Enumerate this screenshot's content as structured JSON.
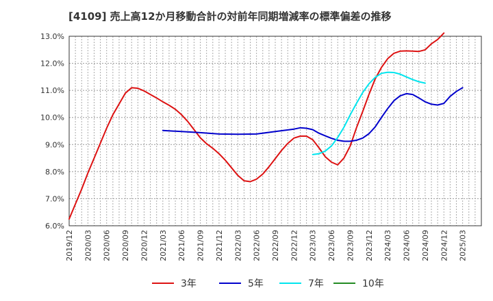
{
  "chart_data": {
    "type": "line",
    "title": "[4109]  売上高12か月移動合計の対前年同期増減率の標準偏差の推移",
    "xlabel": "",
    "ylabel": "",
    "ylim": [
      6.0,
      13.0
    ],
    "y_ticks": [
      "6.0%",
      "7.0%",
      "8.0%",
      "9.0%",
      "10.0%",
      "11.0%",
      "12.0%",
      "13.0%"
    ],
    "x_ticks": [
      "2019/12",
      "2020/03",
      "2020/06",
      "2020/09",
      "2020/12",
      "2021/03",
      "2021/06",
      "2021/09",
      "2021/12",
      "2022/03",
      "2022/06",
      "2022/09",
      "2022/12",
      "2023/03",
      "2023/06",
      "2023/09",
      "2023/12",
      "2024/03",
      "2024/06",
      "2024/09",
      "2024/12",
      "2025/03"
    ],
    "grid": true,
    "legend_position": "bottom",
    "series": [
      {
        "name": "3年",
        "color": "#dd1111",
        "points": [
          [
            "2019/12",
            6.25
          ],
          [
            "2020/01",
            6.8
          ],
          [
            "2020/02",
            7.35
          ],
          [
            "2020/03",
            7.95
          ],
          [
            "2020/04",
            8.5
          ],
          [
            "2020/05",
            9.05
          ],
          [
            "2020/06",
            9.6
          ],
          [
            "2020/07",
            10.1
          ],
          [
            "2020/08",
            10.5
          ],
          [
            "2020/09",
            10.9
          ],
          [
            "2020/10",
            11.1
          ],
          [
            "2020/11",
            11.08
          ],
          [
            "2020/12",
            10.98
          ],
          [
            "2021/01",
            10.85
          ],
          [
            "2021/02",
            10.72
          ],
          [
            "2021/03",
            10.58
          ],
          [
            "2021/04",
            10.45
          ],
          [
            "2021/05",
            10.3
          ],
          [
            "2021/06",
            10.1
          ],
          [
            "2021/07",
            9.85
          ],
          [
            "2021/08",
            9.55
          ],
          [
            "2021/09",
            9.25
          ],
          [
            "2021/10",
            9.03
          ],
          [
            "2021/11",
            8.86
          ],
          [
            "2021/12",
            8.66
          ],
          [
            "2022/01",
            8.42
          ],
          [
            "2022/02",
            8.14
          ],
          [
            "2022/03",
            7.86
          ],
          [
            "2022/04",
            7.66
          ],
          [
            "2022/05",
            7.63
          ],
          [
            "2022/06",
            7.72
          ],
          [
            "2022/07",
            7.91
          ],
          [
            "2022/08",
            8.18
          ],
          [
            "2022/09",
            8.48
          ],
          [
            "2022/10",
            8.78
          ],
          [
            "2022/11",
            9.04
          ],
          [
            "2022/12",
            9.24
          ],
          [
            "2023/01",
            9.31
          ],
          [
            "2023/02",
            9.31
          ],
          [
            "2023/03",
            9.18
          ],
          [
            "2023/04",
            8.88
          ],
          [
            "2023/05",
            8.55
          ],
          [
            "2023/06",
            8.35
          ],
          [
            "2023/07",
            8.25
          ],
          [
            "2023/08",
            8.5
          ],
          [
            "2023/09",
            8.95
          ],
          [
            "2023/10",
            9.62
          ],
          [
            "2023/11",
            10.22
          ],
          [
            "2023/12",
            10.85
          ],
          [
            "2024/01",
            11.42
          ],
          [
            "2024/02",
            11.85
          ],
          [
            "2024/03",
            12.17
          ],
          [
            "2024/04",
            12.37
          ],
          [
            "2024/05",
            12.45
          ],
          [
            "2024/06",
            12.46
          ],
          [
            "2024/07",
            12.45
          ],
          [
            "2024/08",
            12.44
          ],
          [
            "2024/09",
            12.5
          ],
          [
            "2024/10",
            12.72
          ],
          [
            "2024/11",
            12.88
          ],
          [
            "2024/12",
            13.12
          ]
        ]
      },
      {
        "name": "5年",
        "color": "#0000cc",
        "points": [
          [
            "2021/03",
            9.52
          ],
          [
            "2021/06",
            9.48
          ],
          [
            "2021/09",
            9.44
          ],
          [
            "2021/12",
            9.39
          ],
          [
            "2022/03",
            9.38
          ],
          [
            "2022/06",
            9.39
          ],
          [
            "2022/09",
            9.48
          ],
          [
            "2022/12",
            9.57
          ],
          [
            "2023/01",
            9.62
          ],
          [
            "2023/02",
            9.6
          ],
          [
            "2023/03",
            9.55
          ],
          [
            "2023/04",
            9.42
          ],
          [
            "2023/05",
            9.32
          ],
          [
            "2023/06",
            9.23
          ],
          [
            "2023/07",
            9.16
          ],
          [
            "2023/08",
            9.12
          ],
          [
            "2023/09",
            9.12
          ],
          [
            "2023/10",
            9.16
          ],
          [
            "2023/11",
            9.24
          ],
          [
            "2023/12",
            9.4
          ],
          [
            "2024/01",
            9.65
          ],
          [
            "2024/02",
            10.0
          ],
          [
            "2024/03",
            10.33
          ],
          [
            "2024/04",
            10.62
          ],
          [
            "2024/05",
            10.8
          ],
          [
            "2024/06",
            10.88
          ],
          [
            "2024/07",
            10.85
          ],
          [
            "2024/08",
            10.72
          ],
          [
            "2024/09",
            10.58
          ],
          [
            "2024/10",
            10.49
          ],
          [
            "2024/11",
            10.46
          ],
          [
            "2024/12",
            10.52
          ],
          [
            "2025/01",
            10.78
          ],
          [
            "2025/02",
            10.96
          ],
          [
            "2025/03",
            11.1
          ]
        ]
      },
      {
        "name": "7年",
        "color": "#00e5ee",
        "points": [
          [
            "2023/03",
            8.63
          ],
          [
            "2023/04",
            8.66
          ],
          [
            "2023/05",
            8.76
          ],
          [
            "2023/06",
            8.95
          ],
          [
            "2023/07",
            9.26
          ],
          [
            "2023/08",
            9.64
          ],
          [
            "2023/09",
            10.1
          ],
          [
            "2023/10",
            10.52
          ],
          [
            "2023/11",
            10.92
          ],
          [
            "2023/12",
            11.24
          ],
          [
            "2024/01",
            11.48
          ],
          [
            "2024/02",
            11.63
          ],
          [
            "2024/03",
            11.67
          ],
          [
            "2024/04",
            11.66
          ],
          [
            "2024/05",
            11.6
          ],
          [
            "2024/06",
            11.5
          ],
          [
            "2024/07",
            11.4
          ],
          [
            "2024/08",
            11.32
          ],
          [
            "2024/09",
            11.27
          ]
        ]
      },
      {
        "name": "10年",
        "color": "#228b22",
        "points": []
      }
    ]
  }
}
